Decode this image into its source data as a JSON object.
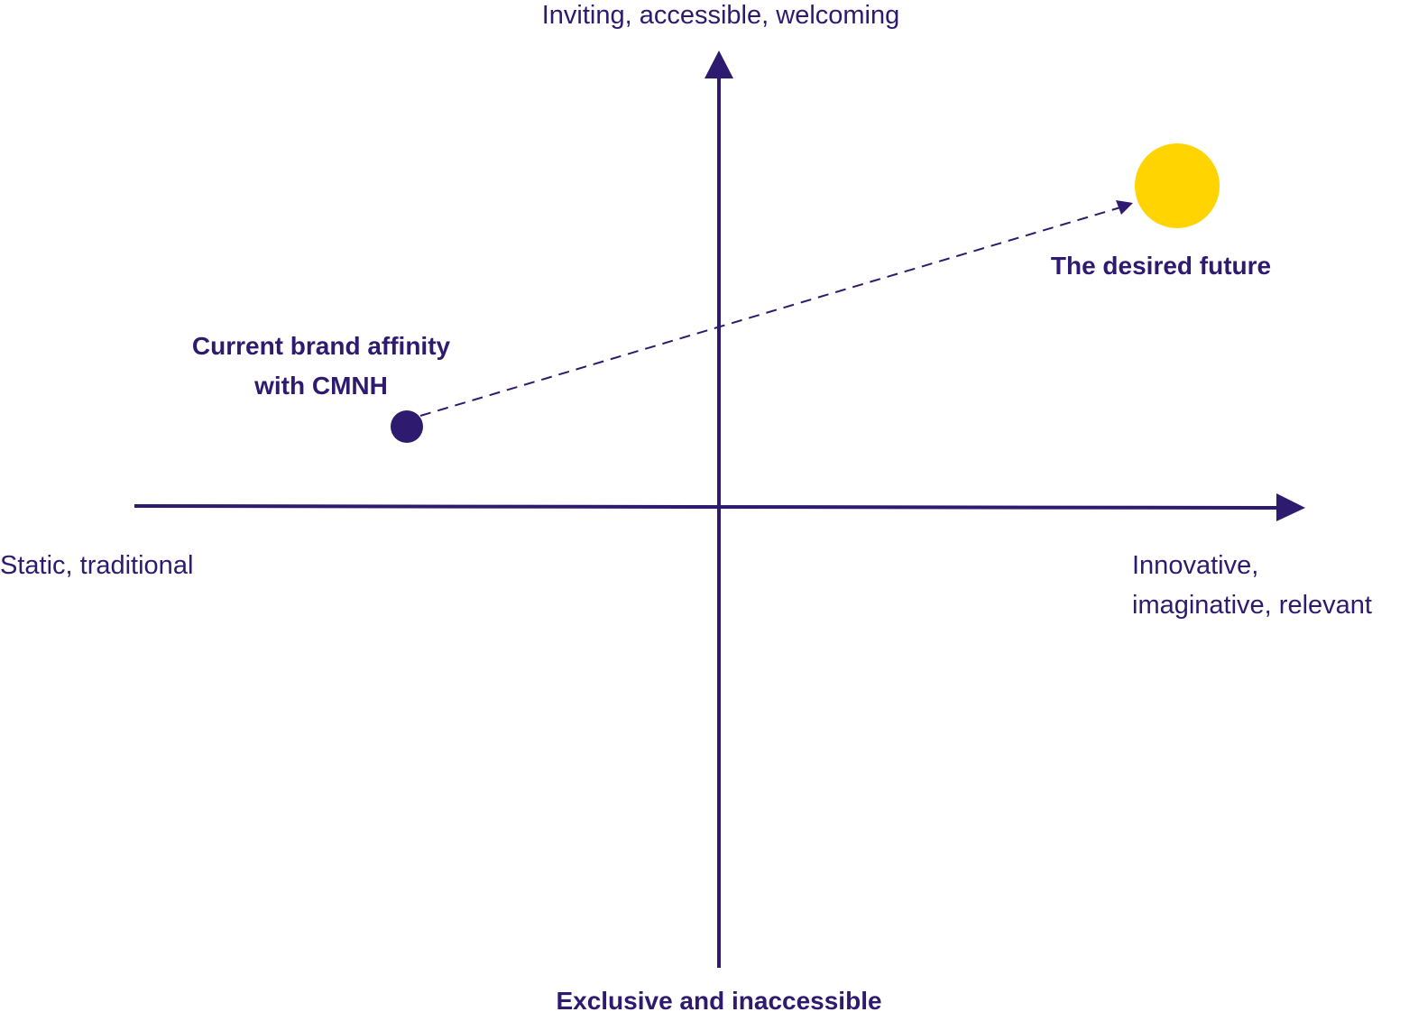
{
  "axes": {
    "top": "Inviting, accessible, welcoming",
    "bottom": "Exclusive and inaccessible",
    "left": "Static, traditional",
    "right": [
      "Innovative,",
      "imaginative, relevant"
    ]
  },
  "points": [
    {
      "label": [
        "Current brand affinity",
        "with CMNH"
      ]
    },
    {
      "label": [
        "The desired future"
      ]
    }
  ]
}
